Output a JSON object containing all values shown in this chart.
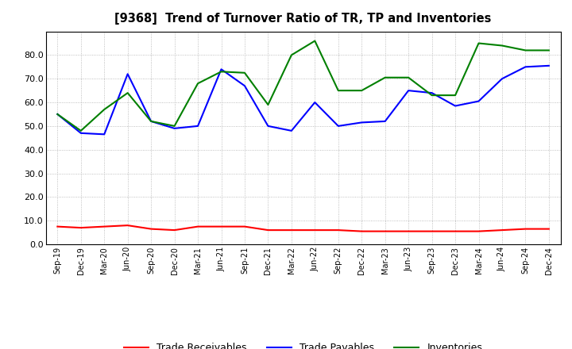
{
  "title": "[9368]  Trend of Turnover Ratio of TR, TP and Inventories",
  "x_labels": [
    "Sep-19",
    "Dec-19",
    "Mar-20",
    "Jun-20",
    "Sep-20",
    "Dec-20",
    "Mar-21",
    "Jun-21",
    "Sep-21",
    "Dec-21",
    "Mar-22",
    "Jun-22",
    "Sep-22",
    "Dec-22",
    "Mar-23",
    "Jun-23",
    "Sep-23",
    "Dec-23",
    "Mar-24",
    "Jun-24",
    "Sep-24",
    "Dec-24"
  ],
  "trade_receivables": [
    7.5,
    7.0,
    7.5,
    8.0,
    6.5,
    6.0,
    7.5,
    7.5,
    7.5,
    6.0,
    6.0,
    6.0,
    6.0,
    5.5,
    5.5,
    5.5,
    5.5,
    5.5,
    5.5,
    6.0,
    6.5,
    6.5
  ],
  "trade_payables": [
    55.0,
    47.0,
    46.5,
    72.0,
    52.0,
    49.0,
    50.0,
    74.0,
    67.0,
    50.0,
    48.0,
    60.0,
    50.0,
    51.5,
    52.0,
    65.0,
    64.0,
    58.5,
    60.5,
    70.0,
    75.0,
    75.5
  ],
  "inventories": [
    55.0,
    48.0,
    57.0,
    64.0,
    52.0,
    50.0,
    68.0,
    73.0,
    72.5,
    59.0,
    80.0,
    86.0,
    65.0,
    65.0,
    70.5,
    70.5,
    63.0,
    63.0,
    85.0,
    84.0,
    82.0,
    82.0
  ],
  "tr_color": "#ff0000",
  "tp_color": "#0000ff",
  "inv_color": "#008000",
  "ylim": [
    0.0,
    90.0
  ],
  "yticks": [
    0.0,
    10.0,
    20.0,
    30.0,
    40.0,
    50.0,
    60.0,
    70.0,
    80.0
  ],
  "bg_color": "#ffffff",
  "plot_bg_color": "#ffffff",
  "grid_color": "#999999",
  "legend_labels": [
    "Trade Receivables",
    "Trade Payables",
    "Inventories"
  ]
}
